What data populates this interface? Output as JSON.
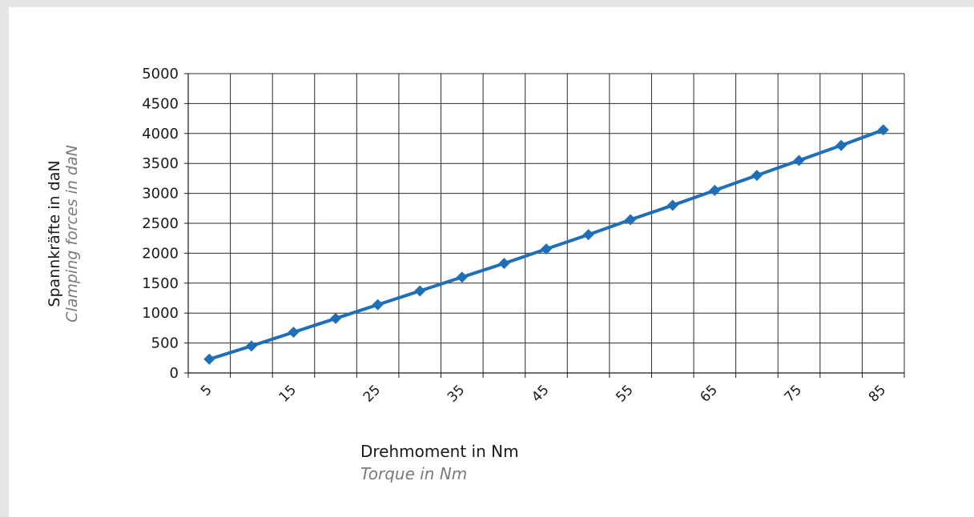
{
  "chart_data": {
    "type": "line",
    "title": "",
    "ylabel": "Spannkräfte in daN",
    "ylabel_secondary": "Clamping forces in daN",
    "xlabel": "Drehmoment in Nm",
    "xlabel_secondary": "Torque in Nm",
    "ylim": [
      0,
      5000
    ],
    "y_ticks": [
      0,
      500,
      1000,
      1500,
      2000,
      2500,
      3000,
      3500,
      4000,
      4500,
      5000
    ],
    "x_tick_labels": [
      "5",
      "15",
      "25",
      "35",
      "45",
      "55",
      "65",
      "75",
      "85"
    ],
    "x": [
      5,
      10,
      15,
      20,
      25,
      30,
      35,
      40,
      45,
      50,
      55,
      60,
      65,
      70,
      75,
      80,
      85
    ],
    "series": [
      {
        "values": [
          230,
          450,
          680,
          910,
          1140,
          1370,
          1600,
          1830,
          2070,
          2310,
          2560,
          2800,
          3050,
          3300,
          3550,
          3800,
          4060
        ]
      }
    ],
    "grid": true,
    "legend": "none",
    "colors": {
      "line": "#1f6eb8",
      "grid": "#2a2a2a"
    }
  }
}
